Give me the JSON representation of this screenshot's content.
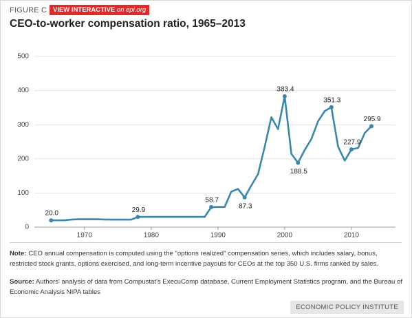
{
  "chart_data": {
    "type": "line",
    "figure_label": "FIGURE C",
    "badge": "VIEW INTERACTIVE",
    "badge_link": "on epi.org",
    "title": "CEO-to-worker compensation ratio, 1965–2013",
    "x": [
      1965,
      1966,
      1967,
      1968,
      1969,
      1970,
      1971,
      1972,
      1973,
      1974,
      1975,
      1976,
      1977,
      1978,
      1979,
      1980,
      1981,
      1982,
      1983,
      1984,
      1985,
      1986,
      1987,
      1988,
      1989,
      1990,
      1991,
      1992,
      1993,
      1994,
      1995,
      1996,
      1997,
      1998,
      1999,
      2000,
      2001,
      2002,
      2003,
      2004,
      2005,
      2006,
      2007,
      2008,
      2009,
      2010,
      2011,
      2012,
      2013
    ],
    "values": [
      20.0,
      20,
      20,
      22,
      23,
      23,
      23,
      23,
      22.3,
      22,
      22,
      22,
      22,
      29.9,
      30,
      30,
      30,
      30,
      30,
      30,
      30,
      30,
      30,
      30,
      58.7,
      59,
      59,
      104,
      112,
      87.3,
      122,
      155,
      235,
      322,
      287,
      383.4,
      215,
      188.5,
      226,
      258,
      310,
      340,
      351.3,
      236,
      195,
      227.9,
      232,
      276,
      295.9
    ],
    "value_labels": [
      "20.0",
      null,
      null,
      null,
      null,
      null,
      null,
      null,
      null,
      null,
      null,
      null,
      null,
      "29.9",
      null,
      null,
      null,
      null,
      null,
      null,
      null,
      null,
      null,
      null,
      "58.7",
      null,
      null,
      null,
      null,
      "87.3",
      null,
      null,
      null,
      null,
      null,
      "383.4",
      null,
      "188.5",
      null,
      null,
      null,
      null,
      "351.3",
      null,
      null,
      "227.9",
      null,
      null,
      "295.9"
    ],
    "color": "#3a87ab",
    "xlim": [
      1962.5,
      2016.6
    ],
    "xticks": [
      1970,
      1980,
      1990,
      2000,
      2010
    ],
    "ylim": [
      0,
      500
    ],
    "yticks": [
      0,
      100,
      200,
      300,
      400,
      500
    ],
    "grid": true,
    "note_label": "Note:",
    "note": "CEO annual compensation is computed using the \"options realized\" compensation series, which includes salary, bonus, restricted stock grants, options exercised, and long-term incentive payouts for CEOs at the top 350 U.S. firms ranked by sales.",
    "source_label": "Source:",
    "source": "Authors' analysis of data from Compustat's ExecuComp database, Current Employment Statistics program, and the Bureau of Economic Analysis NIPA tables",
    "footer": "ECONOMIC POLICY INSTITUTE"
  }
}
